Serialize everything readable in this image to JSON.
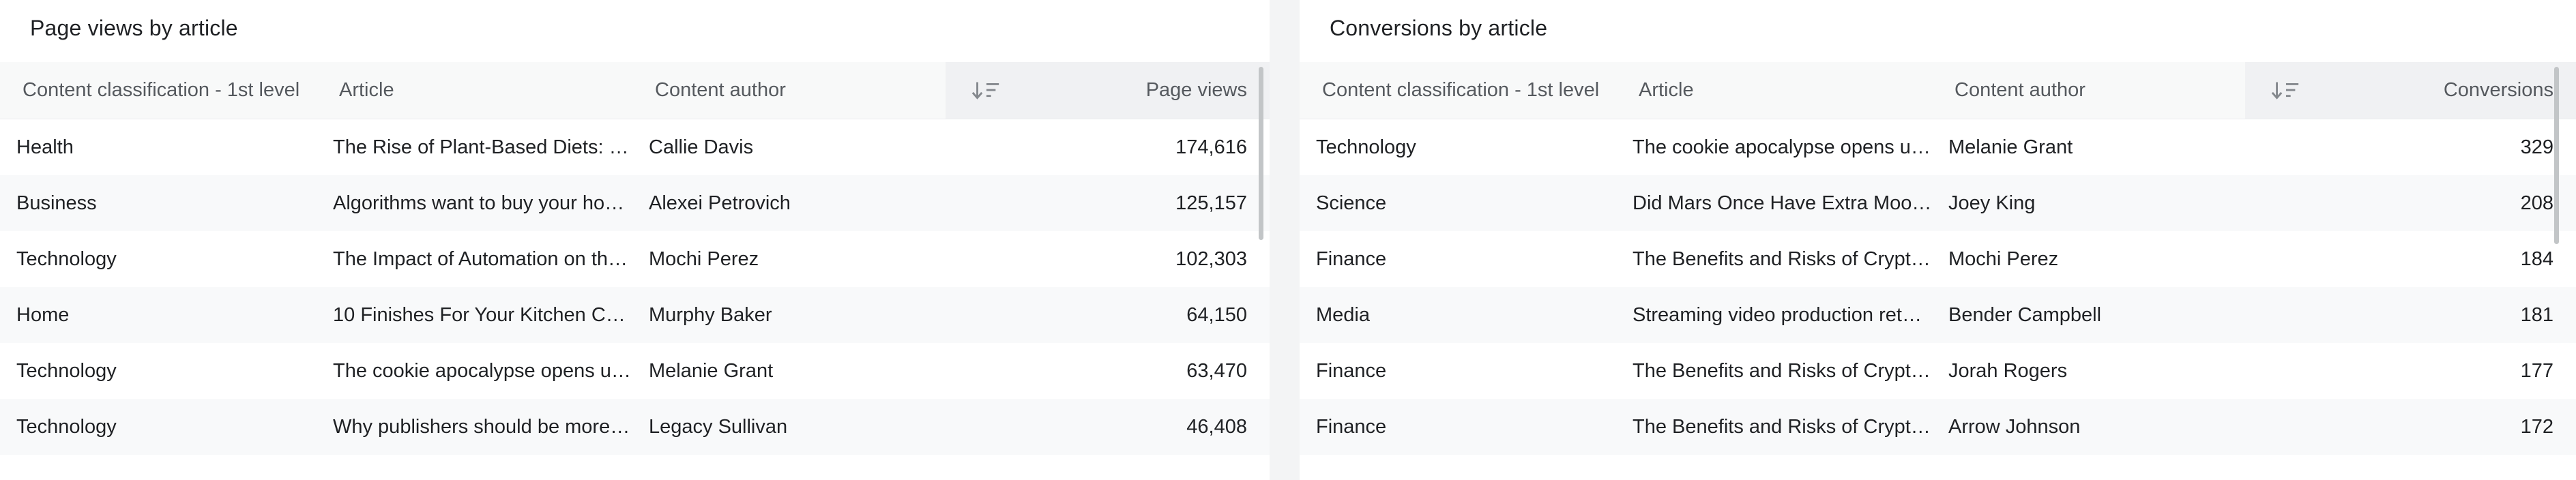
{
  "colors": {
    "page_background": "#f3f4f5",
    "card_background": "#ffffff",
    "header_background": "#f8f9f9",
    "sorted_column_header_background": "#f0f1f3",
    "zebra_row_background": "#f8f9fa",
    "title_text": "#1f2124",
    "header_text": "#55595e",
    "body_text": "#1f2124",
    "sort_icon": "#84888d",
    "scrollbar_thumb": "#c2c5c7"
  },
  "panels": [
    {
      "title": "Page views by article",
      "columns": {
        "classification": "Content classification - 1st level",
        "article": "Article",
        "author": "Content author",
        "metric": "Page views"
      },
      "sort_icon": "sort-descending-icon",
      "rows": [
        {
          "classification": "Health",
          "article": "The Rise of Plant-Based Diets: B…",
          "author": "Callie Davis",
          "metric": "174,616"
        },
        {
          "classification": "Business",
          "article": "Algorithms want to buy your ho…",
          "author": "Alexei Petrovich",
          "metric": "125,157"
        },
        {
          "classification": "Technology",
          "article": "The Impact of Automation on th…",
          "author": "Mochi Perez",
          "metric": "102,303"
        },
        {
          "classification": "Home",
          "article": "10 Finishes For Your Kitchen Ca…",
          "author": "Murphy Baker",
          "metric": "64,150"
        },
        {
          "classification": "Technology",
          "article": "The cookie apocalypse opens u…",
          "author": "Melanie Grant",
          "metric": "63,470"
        },
        {
          "classification": "Technology",
          "article": "Why publishers should be more …",
          "author": "Legacy Sullivan",
          "metric": "46,408"
        }
      ]
    },
    {
      "title": "Conversions by article",
      "columns": {
        "classification": "Content classification - 1st level",
        "article": "Article",
        "author": "Content author",
        "metric": "Conversions"
      },
      "sort_icon": "sort-descending-icon",
      "rows": [
        {
          "classification": "Technology",
          "article": "The cookie apocalypse opens u…",
          "author": "Melanie Grant",
          "metric": "329"
        },
        {
          "classification": "Science",
          "article": "Did Mars Once Have Extra Moon…",
          "author": "Joey King",
          "metric": "208"
        },
        {
          "classification": "Finance",
          "article": "The Benefits and Risks of Crypto…",
          "author": "Mochi Perez",
          "metric": "184"
        },
        {
          "classification": "Media",
          "article": "Streaming video production ret…",
          "author": "Bender Campbell",
          "metric": "181"
        },
        {
          "classification": "Finance",
          "article": "The Benefits and Risks of Crypto…",
          "author": "Jorah Rogers",
          "metric": "177"
        },
        {
          "classification": "Finance",
          "article": "The Benefits and Risks of Crypto…",
          "author": "Arrow Johnson",
          "metric": "172"
        }
      ]
    }
  ]
}
